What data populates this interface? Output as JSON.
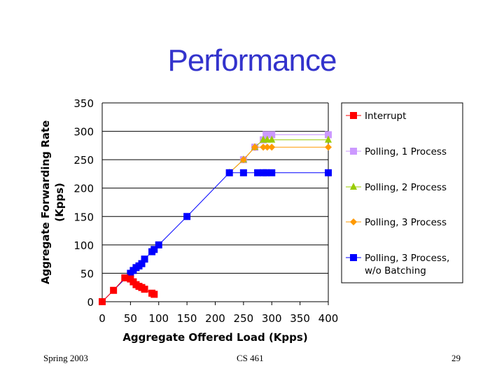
{
  "slide": {
    "title": "Performance",
    "footer_left": "Spring 2003",
    "footer_center": "CS 461",
    "page_number": "29"
  },
  "chart_data": {
    "type": "line",
    "title": "",
    "xlabel": "Aggregate Offered Load (Kpps)",
    "ylabel_line1": "Aggregate Forwarding Rate",
    "ylabel_line2": "(Kpps)",
    "xlim": [
      0,
      400
    ],
    "ylim": [
      0,
      350
    ],
    "xticks": [
      0,
      50,
      100,
      150,
      200,
      250,
      300,
      350,
      400
    ],
    "yticks": [
      0,
      50,
      100,
      150,
      200,
      250,
      300,
      350
    ],
    "grid": "horizontal",
    "legend_position": "right",
    "series": [
      {
        "name": "Interrupt",
        "color": "#ff0000",
        "marker": "square",
        "x": [
          0,
          20,
          40,
          50,
          55,
          60,
          65,
          70,
          75,
          88,
          92
        ],
        "y": [
          0,
          20,
          42,
          40,
          35,
          30,
          27,
          25,
          22,
          15,
          13
        ]
      },
      {
        "name": "Polling, 1 Process",
        "color": "#cc99ff",
        "marker": "square",
        "x": [
          225,
          250,
          270,
          285,
          290,
          300,
          400
        ],
        "y": [
          227,
          250,
          272,
          285,
          294,
          294,
          294
        ]
      },
      {
        "name": "Polling, 2 Process",
        "color": "#99cc00",
        "marker": "triangle",
        "x": [
          225,
          250,
          270,
          285,
          292,
          300,
          400
        ],
        "y": [
          227,
          250,
          272,
          285,
          285,
          285,
          285
        ]
      },
      {
        "name": "Polling, 3 Process",
        "color": "#ff9900",
        "marker": "diamond",
        "x": [
          225,
          250,
          270,
          285,
          292,
          300,
          400
        ],
        "y": [
          227,
          250,
          272,
          272,
          272,
          272,
          272
        ]
      },
      {
        "name": "Polling, 3 Process, w/o Batching",
        "legend_line1": "Polling, 3 Process,",
        "legend_line2": "w/o Batching",
        "color": "#0000ff",
        "marker": "square",
        "x": [
          0,
          50,
          55,
          60,
          65,
          70,
          75,
          88,
          92,
          100,
          150,
          225,
          250,
          275,
          285,
          290,
          300,
          400
        ],
        "y": [
          0,
          50,
          55,
          60,
          63,
          67,
          75,
          88,
          92,
          100,
          150,
          227,
          227,
          227,
          227,
          227,
          227,
          227
        ]
      }
    ]
  }
}
